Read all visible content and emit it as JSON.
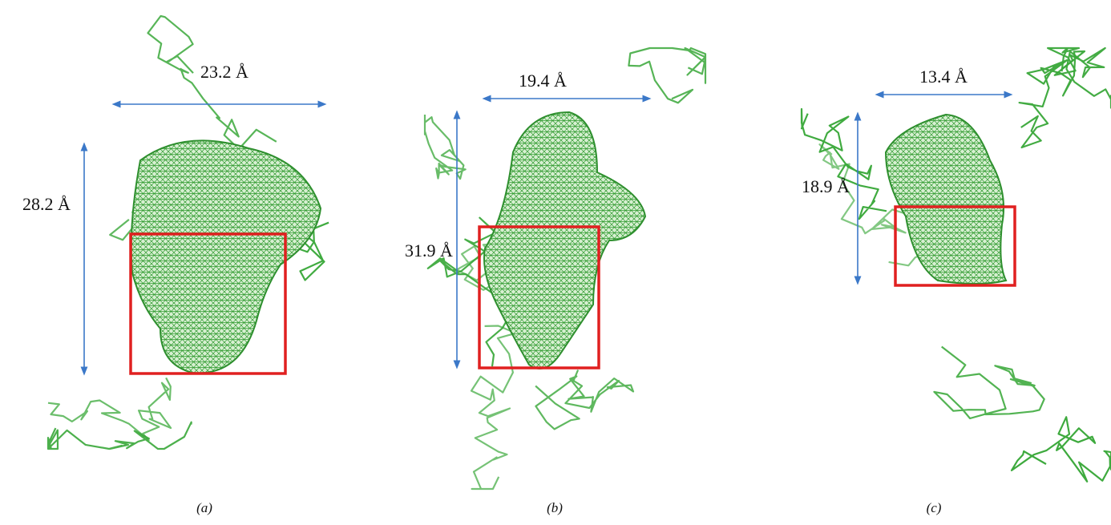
{
  "panels": [
    {
      "label": "(a)",
      "width_label": "23.2 Å",
      "height_label": "28.2 Å"
    },
    {
      "label": "(b)",
      "width_label": "19.4 Å",
      "height_label": "31.9 Å"
    },
    {
      "label": "(c)",
      "width_label": "13.4 Å",
      "height_label": "18.9 Å"
    }
  ]
}
